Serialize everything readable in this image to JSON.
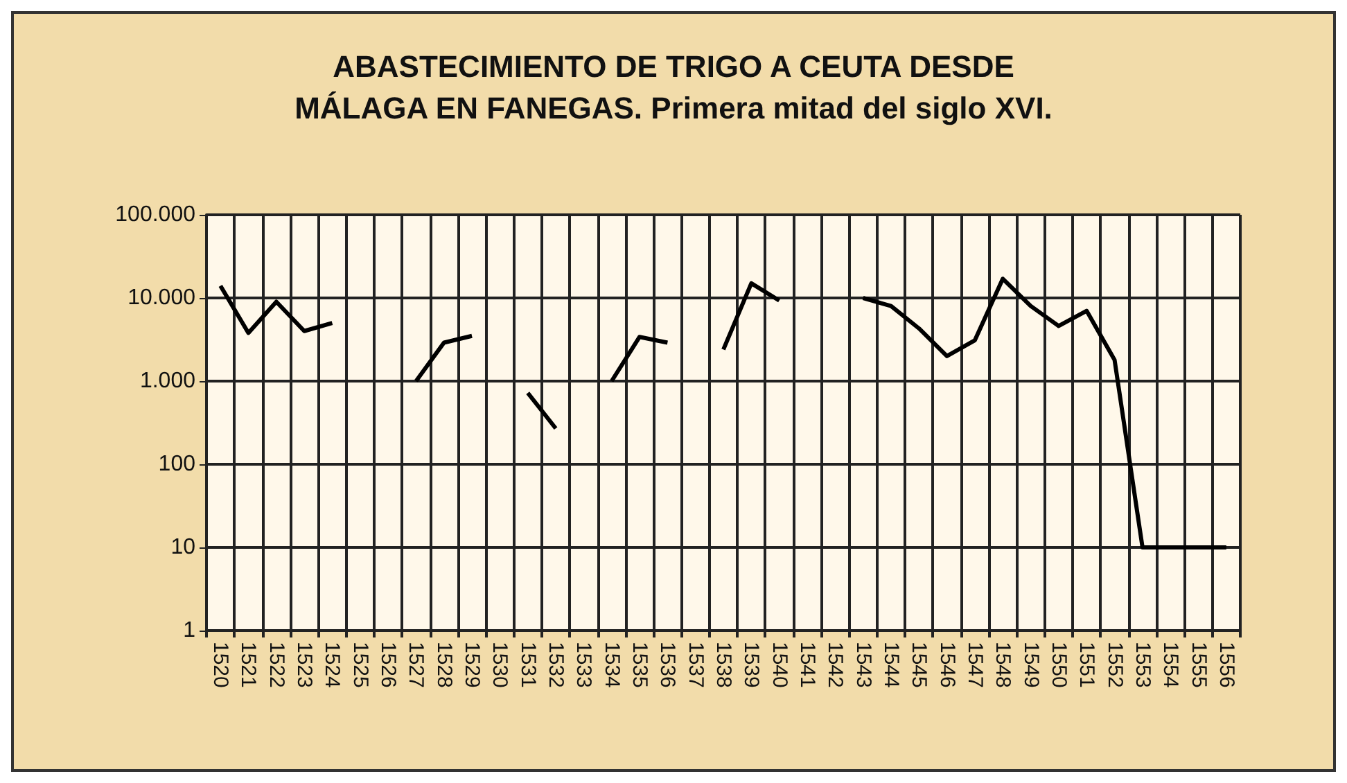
{
  "chart_data": {
    "type": "line",
    "title": "ABASTECIMIENTO DE TRIGO A CEUTA DESDE\nMÁLAGA EN FANEGAS. Primera mitad del siglo XVI.",
    "categories": [
      "1520",
      "1521",
      "1522",
      "1523",
      "1524",
      "1525",
      "1526",
      "1527",
      "1528",
      "1529",
      "1530",
      "1531",
      "1532",
      "1533",
      "1534",
      "1535",
      "1536",
      "1537",
      "1538",
      "1539",
      "1540",
      "1541",
      "1542",
      "1543",
      "1544",
      "1545",
      "1546",
      "1547",
      "1548",
      "1549",
      "1550",
      "1551",
      "1552",
      "1553",
      "1554",
      "1555",
      "1556"
    ],
    "series": [
      {
        "color": "#000000",
        "values": [
          14000,
          3800,
          9000,
          4000,
          5000,
          null,
          null,
          1000,
          2900,
          3500,
          null,
          720,
          270,
          null,
          1000,
          3400,
          2900,
          null,
          2400,
          15000,
          9300,
          null,
          null,
          10000,
          8000,
          4300,
          2000,
          3100,
          17000,
          8000,
          4600,
          7000,
          1800,
          10,
          10,
          10,
          10
        ]
      }
    ],
    "log": "y",
    "ylim": [
      1,
      100000
    ],
    "yticks": [
      1,
      10,
      100,
      {
        "value": 1000,
        "label": "1.000"
      },
      {
        "value": 10000,
        "label": "10.000"
      },
      {
        "value": 100000,
        "label": "100.000"
      }
    ],
    "grid": true,
    "marker": "none",
    "line_style": "solid"
  }
}
